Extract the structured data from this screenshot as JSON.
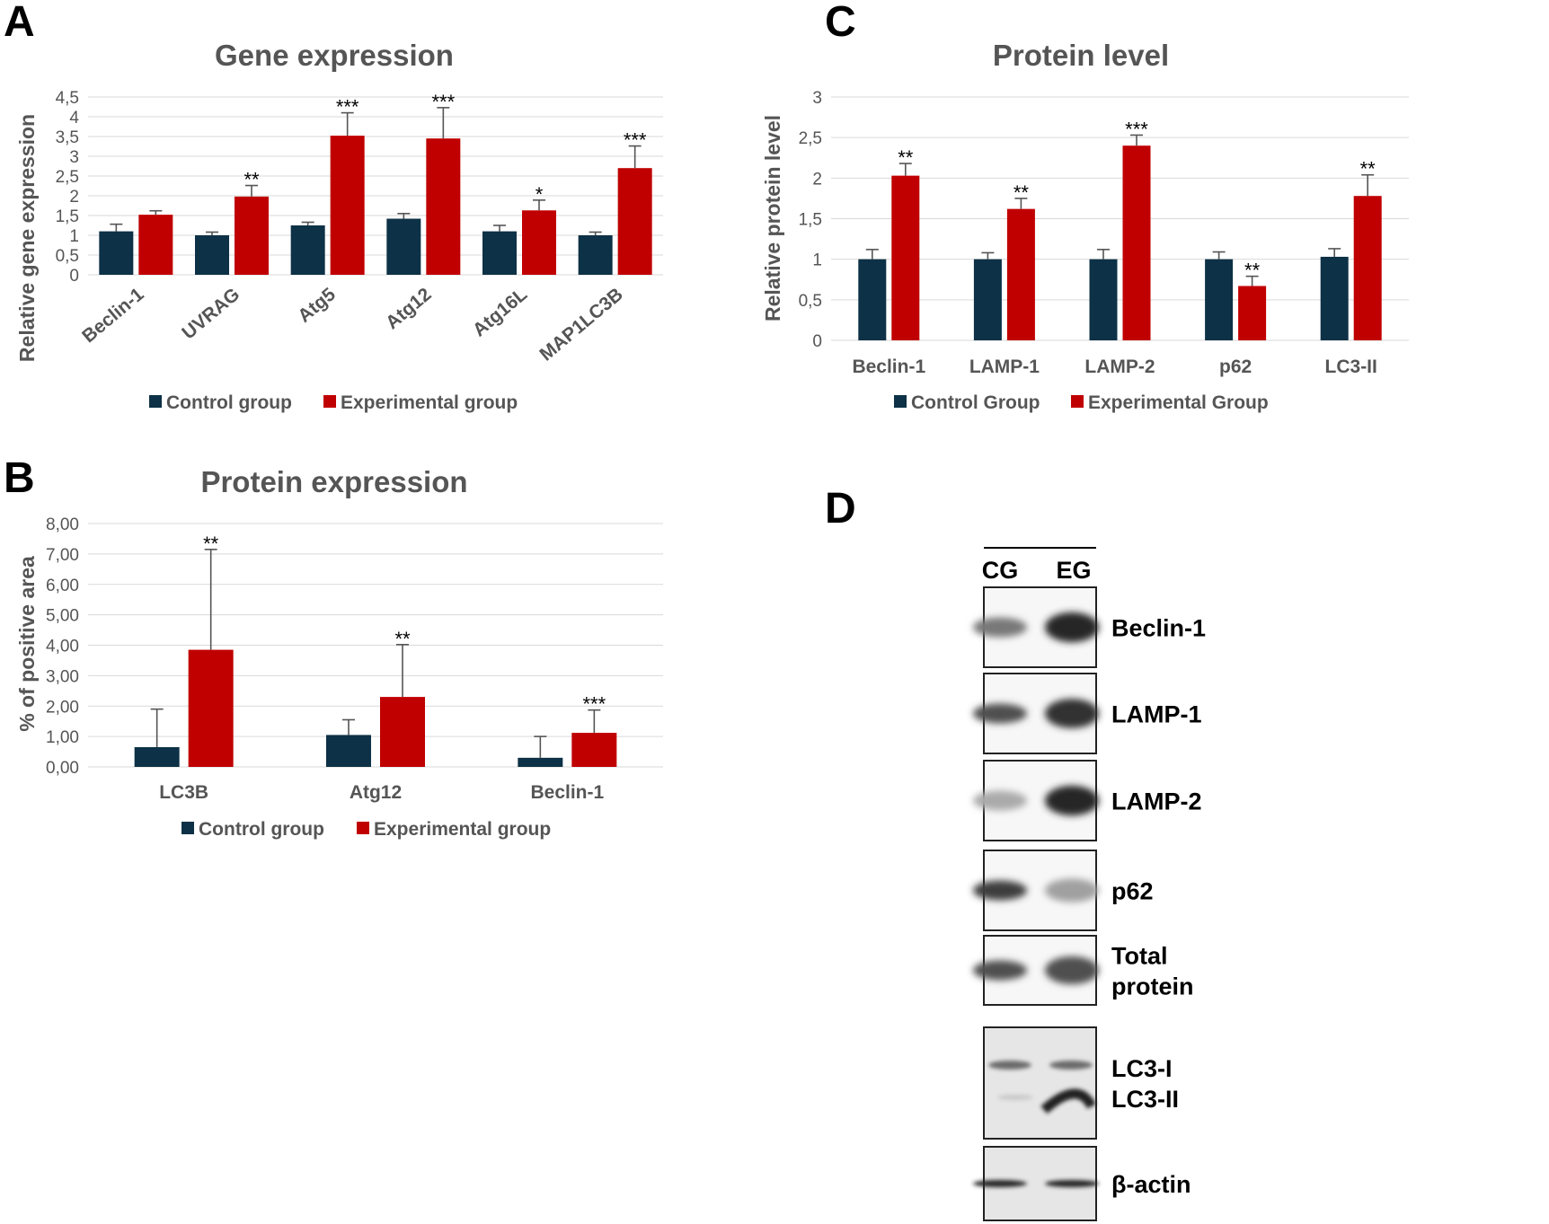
{
  "colors": {
    "control": "#0d3146",
    "experimental": "#c00000",
    "grid": "#d9d9d9",
    "text": "#555555"
  },
  "panels": {
    "A": {
      "letter": "A"
    },
    "B": {
      "letter": "B"
    },
    "C": {
      "letter": "C"
    },
    "D": {
      "letter": "D"
    }
  },
  "chart_data": [
    {
      "id": "A",
      "type": "bar",
      "title": "Gene expression",
      "xlabel": "",
      "ylabel": "Relative gene expression",
      "ylim": [
        0,
        4.5
      ],
      "yticks": [
        "0",
        "0,5",
        "1",
        "1,5",
        "2",
        "2,5",
        "3",
        "3,5",
        "4",
        "4,5"
      ],
      "grid": true,
      "rotated_categories": true,
      "categories": [
        "Beclin-1",
        "UVRAG",
        "Atg5",
        "Atg12",
        "Atg16L",
        "MAP1LC3B"
      ],
      "series": [
        {
          "name": "Control group",
          "values": [
            1.1,
            1.0,
            1.25,
            1.42,
            1.1,
            1.0
          ],
          "errors": [
            0.18,
            0.08,
            0.08,
            0.13,
            0.15,
            0.08
          ]
        },
        {
          "name": "Experimental group",
          "values": [
            1.52,
            1.98,
            3.52,
            3.45,
            1.63,
            2.7
          ],
          "errors": [
            0.1,
            0.28,
            0.58,
            0.78,
            0.26,
            0.56
          ]
        }
      ],
      "significance": [
        "",
        "**",
        "***",
        "***",
        "*",
        "***"
      ],
      "legend_position": "bottom"
    },
    {
      "id": "B",
      "type": "bar",
      "title": "Protein expression",
      "xlabel": "",
      "ylabel": "% of positive area",
      "ylim": [
        0,
        8
      ],
      "yticks": [
        "0,00",
        "1,00",
        "2,00",
        "3,00",
        "4,00",
        "5,00",
        "6,00",
        "7,00",
        "8,00"
      ],
      "grid": true,
      "rotated_categories": false,
      "categories": [
        "LC3B",
        "Atg12",
        "Beclin-1"
      ],
      "series": [
        {
          "name": "Control group",
          "values": [
            0.65,
            1.05,
            0.3
          ],
          "errors": [
            1.25,
            0.5,
            0.7
          ]
        },
        {
          "name": "Experimental group",
          "values": [
            3.85,
            2.3,
            1.12
          ],
          "errors": [
            3.3,
            1.72,
            0.75
          ]
        }
      ],
      "significance": [
        "**",
        "**",
        "***"
      ],
      "legend_position": "bottom"
    },
    {
      "id": "C",
      "type": "bar",
      "title": "Protein level",
      "xlabel": "",
      "ylabel": "Relative protein level",
      "ylim": [
        0,
        3
      ],
      "yticks": [
        "0",
        "0,5",
        "1",
        "1,5",
        "2",
        "2,5",
        "3"
      ],
      "grid": true,
      "rotated_categories": false,
      "categories": [
        "Beclin-1",
        "LAMP-1",
        "LAMP-2",
        "p62",
        "LC3-II"
      ],
      "series": [
        {
          "name": "Control Group",
          "values": [
            1.0,
            1.0,
            1.0,
            1.0,
            1.03
          ],
          "errors": [
            0.12,
            0.08,
            0.12,
            0.09,
            0.1
          ]
        },
        {
          "name": "Experimental Group",
          "values": [
            2.03,
            1.62,
            2.4,
            0.67,
            1.78
          ],
          "errors": [
            0.15,
            0.13,
            0.13,
            0.12,
            0.26
          ]
        }
      ],
      "significance": [
        "**",
        "**",
        "***",
        "**",
        "**"
      ],
      "legend_position": "bottom"
    }
  ],
  "blot": {
    "lanes": [
      "CG",
      "EG"
    ],
    "rows": [
      {
        "name": "beclin",
        "label_lines": [
          "Beclin-1"
        ],
        "cg": 0.55,
        "eg": 0.95
      },
      {
        "name": "lamp1",
        "label_lines": [
          "LAMP-1"
        ],
        "cg": 0.75,
        "eg": 0.9
      },
      {
        "name": "lamp2",
        "label_lines": [
          "LAMP-2"
        ],
        "cg": 0.3,
        "eg": 0.95
      },
      {
        "name": "p62",
        "label_lines": [
          "p62"
        ],
        "cg": 0.85,
        "eg": 0.35
      },
      {
        "name": "total-protein",
        "label_lines": [
          "Total",
          "protein"
        ],
        "cg": 0.75,
        "eg": 0.75
      },
      {
        "name": "lc3",
        "label_lines": [
          "LC3-I",
          "LC3-II"
        ],
        "lc3": true
      },
      {
        "name": "actin",
        "label_lines": [
          "β-actin"
        ],
        "cg": 0.95,
        "eg": 0.95
      }
    ]
  }
}
